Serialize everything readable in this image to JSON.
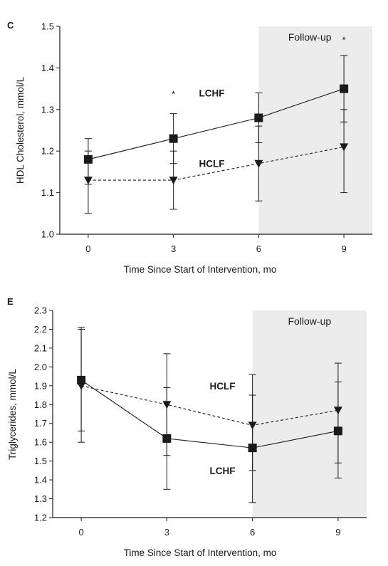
{
  "chart_data": [
    {
      "panel": "C",
      "type": "line",
      "xlabel": "Time Since Start of Intervention, mo",
      "ylabel": "HDL Cholesterol, mmol/L",
      "x": [
        0,
        3,
        6,
        9
      ],
      "xlim": [
        -1,
        10
      ],
      "ylim": [
        1.0,
        1.5
      ],
      "yticks": [
        "1.0",
        "1.1",
        "1.2",
        "1.3",
        "1.4",
        "1.5"
      ],
      "xticks": [
        "0",
        "3",
        "6",
        "9"
      ],
      "follow_up": {
        "label": "Follow-up",
        "from": 6
      },
      "series": [
        {
          "name": "LCHF",
          "marker": "square",
          "line": "solid",
          "values": [
            1.18,
            1.23,
            1.28,
            1.35
          ],
          "err_low": [
            1.12,
            1.17,
            1.22,
            1.27
          ],
          "err_high": [
            1.23,
            1.29,
            1.34,
            1.43
          ]
        },
        {
          "name": "HCLF",
          "marker": "triangle-down",
          "line": "dashed",
          "values": [
            1.13,
            1.13,
            1.17,
            1.21
          ],
          "err_low": [
            1.05,
            1.06,
            1.08,
            1.1
          ],
          "err_high": [
            1.2,
            1.2,
            1.26,
            1.3
          ]
        }
      ],
      "significance": [
        {
          "label": "*",
          "x": 3,
          "y": 1.34
        },
        {
          "label": "*",
          "x": 9,
          "y": 1.47
        }
      ],
      "series_labels": [
        {
          "text": "LCHF",
          "x": 3.9,
          "y": 1.34
        },
        {
          "text": "HCLF",
          "x": 3.9,
          "y": 1.17
        }
      ]
    },
    {
      "panel": "E",
      "type": "line",
      "xlabel": "Time Since Start of Intervention, mo",
      "ylabel": "Triglycerides, mmol/L",
      "x": [
        0,
        3,
        6,
        9
      ],
      "xlim": [
        -1,
        10
      ],
      "ylim": [
        1.2,
        2.3
      ],
      "yticks": [
        "1.2",
        "1.3",
        "1.4",
        "1.5",
        "1.6",
        "1.7",
        "1.8",
        "1.9",
        "2.0",
        "2.1",
        "2.2",
        "2.3"
      ],
      "xticks": [
        "0",
        "3",
        "6",
        "9"
      ],
      "follow_up": {
        "label": "Follow-up",
        "from": 6
      },
      "series": [
        {
          "name": "LCHF",
          "marker": "square",
          "line": "solid",
          "values": [
            1.93,
            1.62,
            1.57,
            1.66
          ],
          "err_low": [
            1.66,
            1.35,
            1.28,
            1.41
          ],
          "err_high": [
            2.2,
            1.89,
            1.85,
            1.92
          ]
        },
        {
          "name": "HCLF",
          "marker": "triangle-down",
          "line": "dashed",
          "values": [
            1.9,
            1.8,
            1.69,
            1.77
          ],
          "err_low": [
            1.6,
            1.53,
            1.45,
            1.49
          ],
          "err_high": [
            2.21,
            2.07,
            1.96,
            2.02
          ]
        }
      ],
      "series_labels": [
        {
          "text": "HCLF",
          "x": 4.5,
          "y": 1.9
        },
        {
          "text": "LCHF",
          "x": 4.5,
          "y": 1.45
        }
      ]
    }
  ]
}
